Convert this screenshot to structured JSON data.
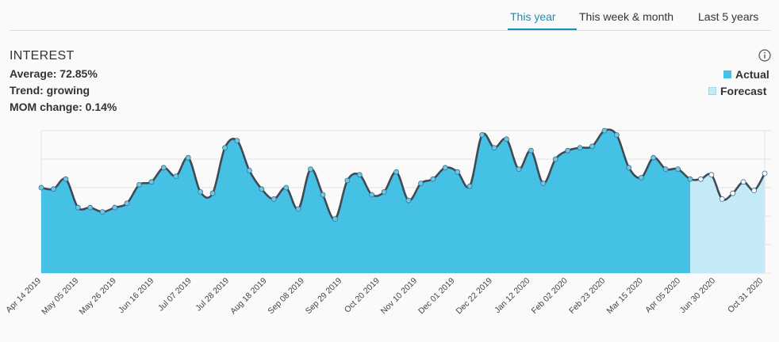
{
  "tabs": [
    {
      "label": "This year",
      "active": true
    },
    {
      "label": "This week & month",
      "active": false
    },
    {
      "label": "Last 5 years",
      "active": false
    }
  ],
  "panel": {
    "title": "INTEREST",
    "average": "Average: 72.85%",
    "trend": "Trend: growing",
    "mom_change": "MOM change: 0.14%",
    "info_icon": "info-icon"
  },
  "legend": {
    "actual": "Actual",
    "forecast": "Forecast"
  },
  "colors": {
    "accent": "#1a8db5",
    "actual_fill": "#45c1e6",
    "forecast_fill": "#c5eaf7",
    "line": "#404a55"
  },
  "chart_data": {
    "type": "area",
    "ylim": [
      0,
      100
    ],
    "grid": true,
    "legend_position": "top-right",
    "x_tick_labels": [
      "Apr 14 2019",
      "May 05 2019",
      "May 26 2019",
      "Jun 16 2019",
      "Jul 07 2019",
      "Jul 28 2019",
      "Aug 18 2019",
      "Sep 08 2019",
      "Sep 29 2019",
      "Oct 20 2019",
      "Nov 10 2019",
      "Dec 01 2019",
      "Dec 22 2019",
      "Jan 12 2020",
      "Feb 02 2020",
      "Feb 23 2020",
      "Mar 15 2020",
      "Apr 05 2020",
      "Jun 30 2020",
      "Oct 31 2020"
    ],
    "series": [
      {
        "name": "Actual",
        "values": [
          60,
          59,
          66,
          46,
          46,
          43,
          46,
          49,
          62,
          64,
          74,
          68,
          81,
          57,
          56,
          88,
          93,
          72,
          59,
          52,
          60,
          45,
          73,
          55,
          38,
          65,
          69,
          55,
          57,
          71,
          51,
          63,
          66,
          74,
          71,
          61,
          97,
          88,
          94,
          73,
          86,
          63,
          80,
          86,
          88,
          89,
          100,
          97,
          74,
          67,
          81,
          73,
          73,
          66
        ]
      },
      {
        "name": "Forecast",
        "values": [
          66,
          69,
          52,
          56,
          64,
          58,
          70
        ]
      }
    ]
  }
}
